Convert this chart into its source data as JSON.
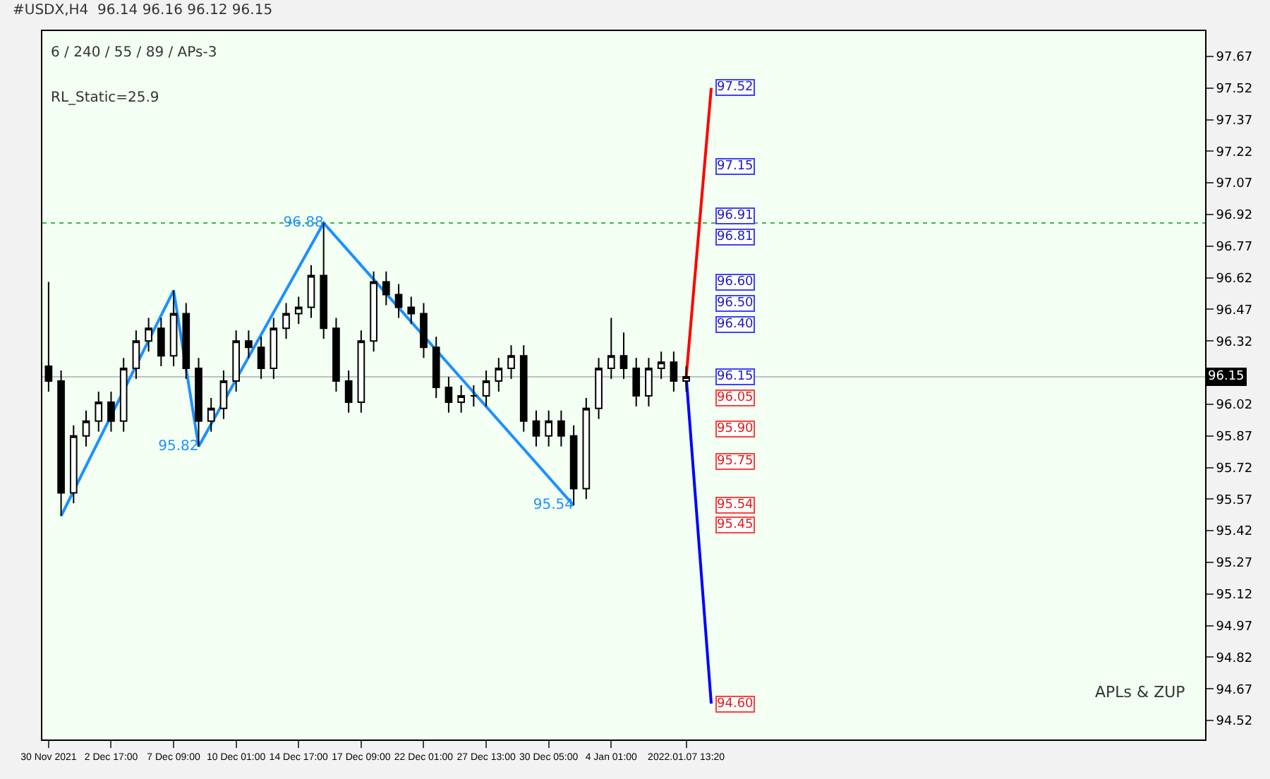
{
  "chart_data": {
    "type": "candlestick",
    "title": "#USDX,H4  96.14 96.16 96.12 96.15",
    "categories": [
      "30 Nov 2021",
      null,
      null,
      null,
      null,
      "2 Dec 17:00",
      null,
      null,
      null,
      null,
      "7 Dec 09:00",
      null,
      null,
      null,
      null,
      "10 Dec 01:00",
      null,
      null,
      null,
      null,
      "14 Dec 17:00",
      null,
      null,
      null,
      null,
      "17 Dec 09:00",
      null,
      null,
      null,
      null,
      "22 Dec 01:00",
      null,
      null,
      null,
      null,
      "27 Dec 13:00",
      null,
      null,
      null,
      null,
      "30 Dec 05:00",
      null,
      null,
      null,
      null,
      "4 Jan 01:00",
      null,
      null,
      null,
      null,
      null,
      "2022.01.07 13:20",
      null,
      null,
      null,
      null,
      null,
      null,
      null,
      null,
      null,
      null,
      null,
      null,
      null,
      null,
      null,
      null,
      null,
      null,
      null,
      null,
      null,
      null,
      null,
      null,
      null,
      null,
      null,
      null,
      null,
      null,
      null,
      null,
      null,
      null,
      null,
      null,
      null,
      null,
      null,
      null,
      null
    ],
    "ohlc": [
      [
        96.2,
        96.6,
        96.08,
        96.13
      ],
      [
        96.13,
        96.18,
        95.49,
        95.6
      ],
      [
        95.6,
        95.92,
        95.55,
        95.87
      ],
      [
        95.87,
        95.99,
        95.82,
        95.94
      ],
      [
        95.94,
        96.08,
        95.89,
        96.03
      ],
      [
        96.03,
        96.08,
        95.89,
        95.94
      ],
      [
        95.94,
        96.24,
        95.89,
        96.19
      ],
      [
        96.19,
        96.37,
        96.14,
        96.32
      ],
      [
        96.32,
        96.43,
        96.27,
        96.38
      ],
      [
        96.38,
        96.43,
        96.2,
        96.25
      ],
      [
        96.25,
        96.56,
        96.2,
        96.45
      ],
      [
        96.45,
        96.5,
        96.14,
        96.19
      ],
      [
        96.19,
        96.24,
        95.82,
        95.94
      ],
      [
        95.94,
        96.05,
        95.89,
        96.0
      ],
      [
        96.0,
        96.18,
        95.95,
        96.13
      ],
      [
        96.13,
        96.37,
        96.08,
        96.32
      ],
      [
        96.32,
        96.37,
        96.24,
        96.29
      ],
      [
        96.29,
        96.34,
        96.14,
        96.19
      ],
      [
        96.19,
        96.43,
        96.14,
        96.38
      ],
      [
        96.38,
        96.5,
        96.33,
        96.45
      ],
      [
        96.45,
        96.53,
        96.4,
        96.48
      ],
      [
        96.48,
        96.68,
        96.43,
        96.63
      ],
      [
        96.63,
        96.88,
        96.33,
        96.38
      ],
      [
        96.38,
        96.43,
        96.08,
        96.13
      ],
      [
        96.13,
        96.18,
        95.98,
        96.03
      ],
      [
        96.03,
        96.37,
        95.98,
        96.32
      ],
      [
        96.32,
        96.65,
        96.27,
        96.6
      ],
      [
        96.6,
        96.65,
        96.49,
        96.54
      ],
      [
        96.54,
        96.59,
        96.43,
        96.48
      ],
      [
        96.48,
        96.53,
        96.4,
        96.45
      ],
      [
        96.45,
        96.5,
        96.24,
        96.29
      ],
      [
        96.29,
        96.34,
        96.05,
        96.1
      ],
      [
        96.1,
        96.15,
        95.98,
        96.03
      ],
      [
        96.03,
        96.11,
        95.98,
        96.06
      ],
      [
        96.06,
        96.11,
        96.01,
        96.06
      ],
      [
        96.06,
        96.18,
        96.01,
        96.13
      ],
      [
        96.13,
        96.24,
        96.08,
        96.19
      ],
      [
        96.19,
        96.3,
        96.14,
        96.25
      ],
      [
        96.25,
        96.3,
        95.89,
        95.94
      ],
      [
        95.94,
        95.99,
        95.82,
        95.87
      ],
      [
        95.87,
        95.99,
        95.82,
        95.94
      ],
      [
        95.94,
        95.99,
        95.82,
        95.87
      ],
      [
        95.87,
        95.92,
        95.54,
        95.62
      ],
      [
        95.62,
        96.05,
        95.57,
        96.0
      ],
      [
        96.0,
        96.24,
        95.95,
        96.19
      ],
      [
        96.19,
        96.43,
        96.14,
        96.25
      ],
      [
        96.25,
        96.36,
        96.14,
        96.19
      ],
      [
        96.19,
        96.24,
        96.01,
        96.06
      ],
      [
        96.06,
        96.24,
        96.01,
        96.19
      ],
      [
        96.19,
        96.27,
        96.14,
        96.22
      ],
      [
        96.22,
        96.27,
        96.08,
        96.13
      ],
      [
        96.13,
        96.2,
        96.08,
        96.15
      ],
      null,
      null,
      null,
      null,
      null,
      null,
      null,
      null,
      null,
      null,
      null,
      null,
      null,
      null,
      null,
      null,
      null,
      null,
      null,
      null,
      null,
      null,
      null,
      null,
      null,
      null,
      null,
      null,
      null,
      null,
      null,
      null,
      null,
      null,
      null,
      null,
      null,
      null,
      null,
      null,
      null
    ],
    "series": [
      {
        "type": "line",
        "color": "#1e90ff",
        "values": [
          null,
          95.49,
          null,
          null,
          null,
          null,
          null,
          null,
          null,
          null,
          96.56,
          null,
          95.82,
          null,
          null,
          null,
          null,
          null,
          null,
          null,
          null,
          null,
          96.88,
          null,
          null,
          null,
          null,
          null,
          null,
          null,
          null,
          null,
          null,
          null,
          null,
          null,
          null,
          null,
          null,
          null,
          null,
          null,
          95.54,
          null,
          null,
          null,
          null,
          null,
          null,
          null,
          null,
          null,
          null,
          null,
          null,
          null,
          null,
          null,
          null,
          null,
          null,
          null,
          null,
          null,
          null,
          null,
          null,
          null,
          null,
          null,
          null,
          null,
          null,
          null,
          null,
          null,
          null,
          null,
          null,
          null,
          null,
          null,
          null,
          null,
          null,
          null,
          null,
          null,
          null,
          null,
          null,
          null,
          null
        ],
        "value_labels": [
          null,
          null,
          null,
          null,
          null,
          null,
          null,
          null,
          null,
          null,
          null,
          null,
          "95.82",
          null,
          null,
          null,
          null,
          null,
          null,
          null,
          null,
          null,
          "96.88",
          null,
          null,
          null,
          null,
          null,
          null,
          null,
          null,
          null,
          null,
          null,
          null,
          null,
          null,
          null,
          null,
          null,
          null,
          null,
          "95.54",
          null,
          null,
          null,
          null,
          null,
          null,
          null,
          null,
          null,
          null,
          null,
          null,
          null,
          null,
          null,
          null,
          null,
          null,
          null,
          null,
          null,
          null,
          null,
          null,
          null,
          null,
          null,
          null,
          null,
          null,
          null,
          null,
          null,
          null,
          null,
          null,
          null,
          null,
          null,
          null,
          null,
          null,
          null,
          null,
          null,
          null,
          null,
          null,
          null,
          null
        ]
      },
      {
        "type": "line",
        "color": "#ff0000",
        "values": [
          null,
          null,
          null,
          null,
          null,
          null,
          null,
          null,
          null,
          null,
          null,
          null,
          null,
          null,
          null,
          null,
          null,
          null,
          null,
          null,
          null,
          null,
          null,
          null,
          null,
          null,
          null,
          null,
          null,
          null,
          null,
          null,
          null,
          null,
          null,
          null,
          null,
          null,
          null,
          null,
          null,
          null,
          null,
          null,
          null,
          null,
          null,
          null,
          null,
          null,
          null,
          96.15,
          null,
          97.52,
          null,
          null,
          null,
          null,
          null,
          null,
          null,
          null,
          null,
          null,
          null,
          null,
          null,
          null,
          null,
          null,
          null,
          null,
          null,
          null,
          null,
          null,
          null,
          null,
          null,
          null,
          null,
          null,
          null,
          null,
          null,
          null,
          null,
          null,
          null,
          null,
          null,
          null,
          null
        ]
      },
      {
        "type": "line",
        "color": "#0000ff",
        "values": [
          null,
          null,
          null,
          null,
          null,
          null,
          null,
          null,
          null,
          null,
          null,
          null,
          null,
          null,
          null,
          null,
          null,
          null,
          null,
          null,
          null,
          null,
          null,
          null,
          null,
          null,
          null,
          null,
          null,
          null,
          null,
          null,
          null,
          null,
          null,
          null,
          null,
          null,
          null,
          null,
          null,
          null,
          null,
          null,
          null,
          null,
          null,
          null,
          null,
          null,
          null,
          96.15,
          null,
          94.6,
          null,
          null,
          null,
          null,
          null,
          null,
          null,
          null,
          null,
          null,
          null,
          null,
          null,
          null,
          null,
          null,
          null,
          null,
          null,
          null,
          null,
          null,
          null,
          null,
          null,
          null,
          null,
          null,
          null,
          null,
          null,
          null,
          null,
          null,
          null,
          null,
          null,
          null,
          null
        ]
      }
    ],
    "annotations": [
      "6 / 240 / 55 / 89 / APs-3",
      "RL_Static=25.9",
      "APLs & ZUP",
      {
        "text": "97.52",
        "y": 97.52
      },
      {
        "text": "97.15",
        "y": 97.15
      },
      {
        "text": "96.91",
        "y": 96.91
      },
      {
        "text": "96.81",
        "y": 96.81
      },
      {
        "text": "96.60",
        "y": 96.6
      },
      {
        "text": "96.50",
        "y": 96.5
      },
      {
        "text": "96.40",
        "y": 96.4
      },
      {
        "text": "96.15",
        "y": 96.15
      },
      {
        "text": "96.05",
        "y": 96.05
      },
      {
        "text": "95.90",
        "y": 95.9
      },
      {
        "text": "95.75",
        "y": 95.75
      },
      {
        "text": "95.54",
        "y": 95.54
      },
      {
        "text": "95.45",
        "y": 95.45
      },
      {
        "text": "94.60",
        "y": 94.6
      }
    ],
    "ref_lines": [
      {
        "axis": "y",
        "value": 96.15,
        "label": "96.15",
        "color": "#c0c0c0",
        "line_style": "solid"
      },
      {
        "axis": "y",
        "value": 96.88,
        "color": "#4caf50",
        "line_style": "dotted"
      }
    ],
    "ylim": [
      94.43,
      97.79
    ],
    "yticks": [
      94.52,
      94.67,
      94.82,
      94.97,
      95.12,
      95.27,
      95.42,
      95.57,
      95.72,
      95.87,
      96.02,
      96.32,
      96.47,
      96.62,
      96.77,
      96.92,
      97.07,
      97.22,
      97.37,
      97.52,
      97.67
    ],
    "grid": false
  }
}
